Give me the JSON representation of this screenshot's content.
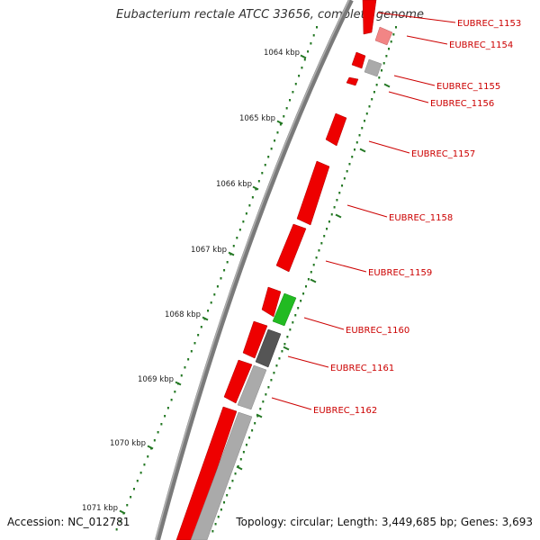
{
  "title": "Eubacterium rectale ATCC 33656, complete genome",
  "footer": {
    "accession": "Accession: NC_012781",
    "summary": "Topology: circular; Length: 3,449,685 bp; Genes: 3,693"
  },
  "kbp_labels": [
    "1064 kbp",
    "1065 kbp",
    "1066 kbp",
    "1067 kbp",
    "1068 kbp",
    "1069 kbp",
    "1070 kbp",
    "1071 kbp"
  ],
  "gene_labels": [
    "EUBREC_1153",
    "EUBREC_1154",
    "EUBREC_1155",
    "EUBREC_1156",
    "EUBREC_1157",
    "EUBREC_1158",
    "EUBREC_1159",
    "EUBREC_1160",
    "EUBREC_1161",
    "EUBREC_1162"
  ],
  "colors": {
    "forward_cds": "#ee0000",
    "forward_cds_light": "#f08080",
    "other_gene": "#aaaaaa",
    "dark_gene": "#555555",
    "rna_gene": "#22bb22",
    "ticks": "#227722",
    "backbone": "#777777",
    "label_text": "#cc0000"
  }
}
